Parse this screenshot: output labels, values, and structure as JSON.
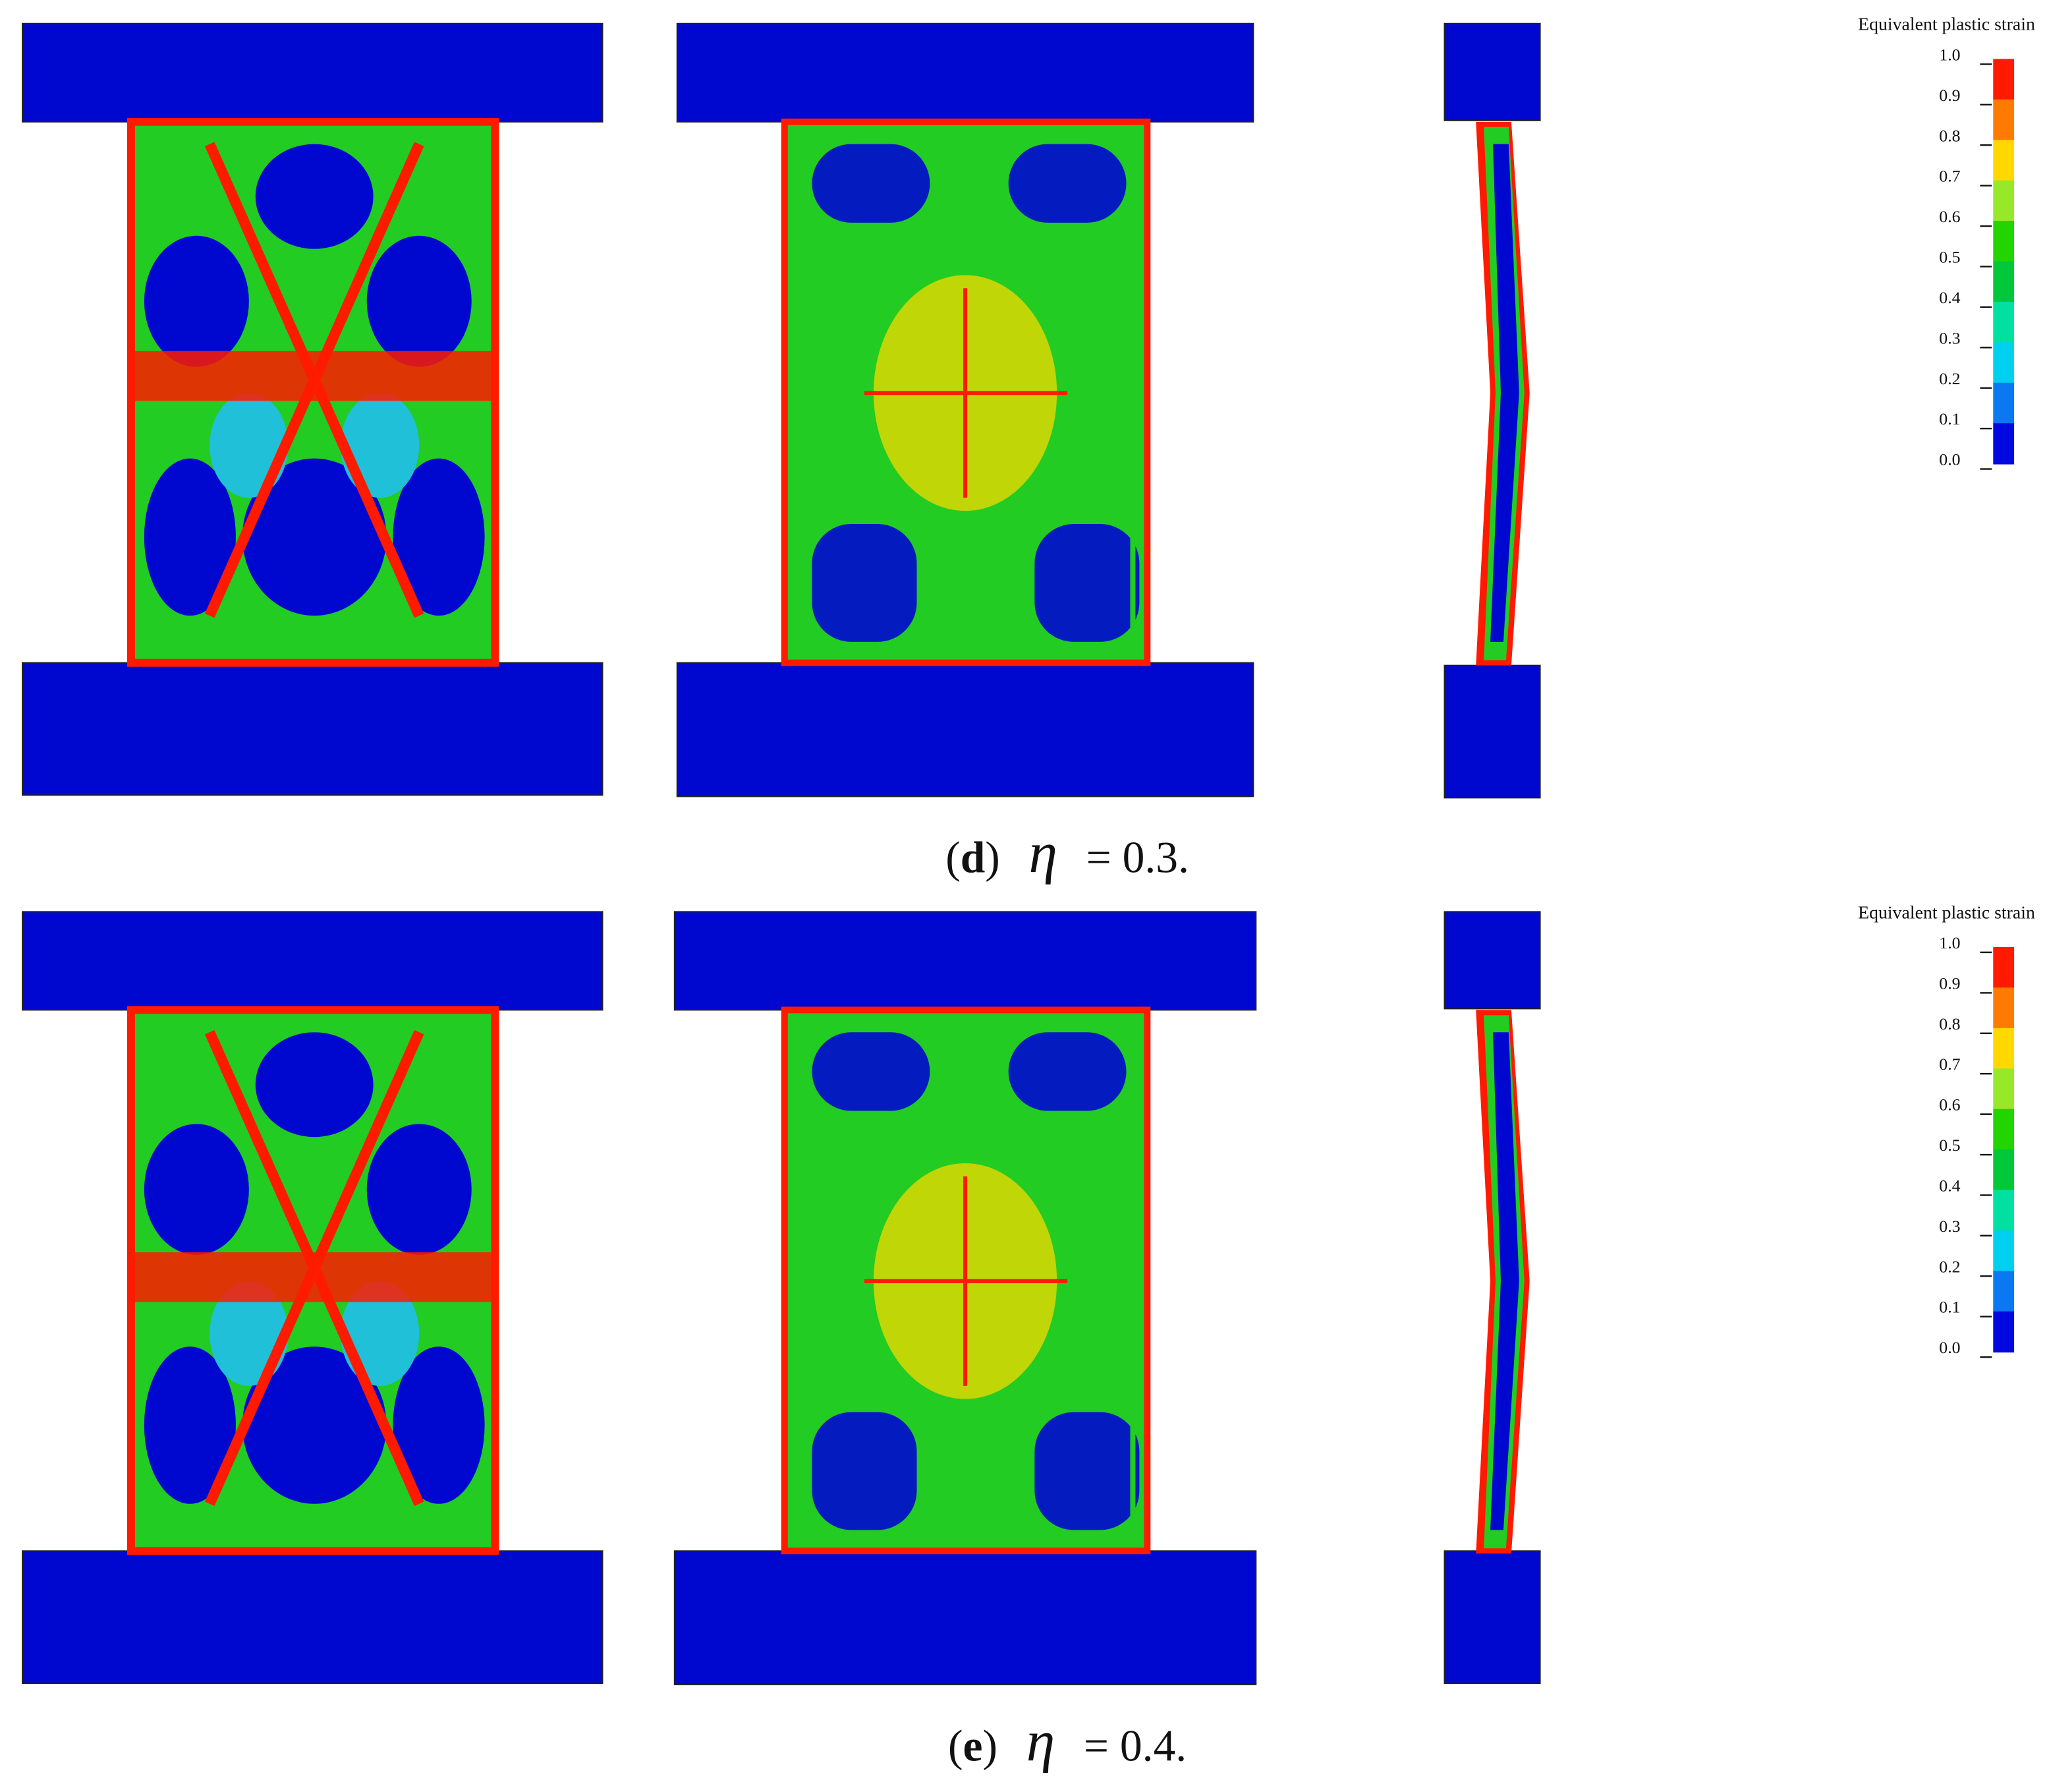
{
  "panels": [
    {
      "caption": {
        "open": "(",
        "letter": "d",
        "close": ")",
        "symbol": "η",
        "text": "= 0.3."
      },
      "legend": {
        "title": "Equivalent plastic strain",
        "labels": [
          "1.0",
          "0.9",
          "0.8",
          "0.7",
          "0.6",
          "0.5",
          "0.4",
          "0.3",
          "0.2",
          "0.1",
          "0.0"
        ],
        "colors": [
          "#ff1a00",
          "#ff7a00",
          "#ffd800",
          "#98e82a",
          "#22d400",
          "#00c83a",
          "#00e0a0",
          "#00d0f0",
          "#0a78f0",
          "#0008e0"
        ]
      }
    },
    {
      "caption": {
        "open": "(",
        "letter": "e",
        "close": ")",
        "symbol": "η",
        "text": "= 0.4."
      },
      "legend": {
        "title": "Equivalent plastic strain",
        "labels": [
          "1.0",
          "0.9",
          "0.8",
          "0.7",
          "0.6",
          "0.5",
          "0.4",
          "0.3",
          "0.2",
          "0.1",
          "0.0"
        ],
        "colors": [
          "#ff1a00",
          "#ff7a00",
          "#ffd800",
          "#98e82a",
          "#22d400",
          "#00c83a",
          "#00e0a0",
          "#00d0f0",
          "#0a78f0",
          "#0008e0"
        ]
      }
    }
  ]
}
